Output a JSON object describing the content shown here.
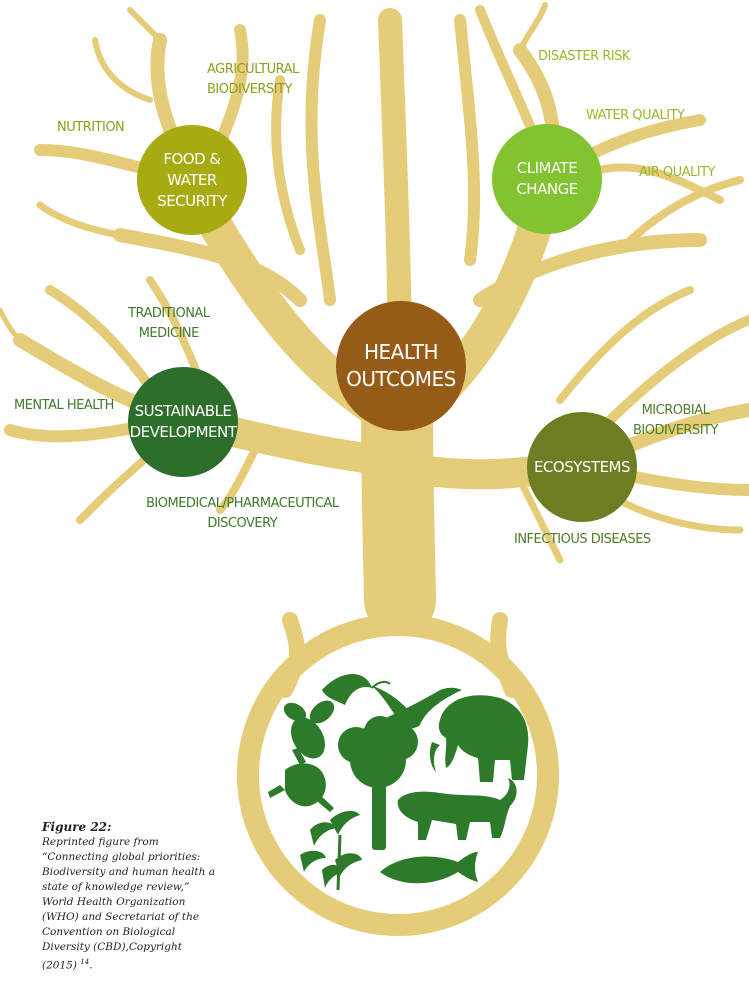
{
  "center": {
    "line1": "HEALTH",
    "line2": "OUTCOMES"
  },
  "hubs": {
    "food": {
      "line1": "FOOD & WATER",
      "line2": "SECURITY"
    },
    "climate": {
      "line1": "CLIMATE",
      "line2": "CHANGE"
    },
    "sustain": {
      "line1": "SUSTAINABLE",
      "line2": "DEVELOPMENT"
    },
    "eco": {
      "line1": "ECOSYSTEMS"
    }
  },
  "labels": {
    "agri_1": "AGRICULTURAL",
    "agri_2": "BIODIVERSITY",
    "nutrition": "NUTRITION",
    "disaster": "DISASTER RISK",
    "water_quality": "WATER QUALITY",
    "air_quality": "AIR QUALITY",
    "trad_1": "TRADITIONAL",
    "trad_2": "MEDICINE",
    "mental": "MENTAL HEALTH",
    "biomed_1": "BIOMEDICAL/PHARMACEUTICAL",
    "biomed_2": "DISCOVERY",
    "micro_1": "MICROBIAL",
    "micro_2": "BIODIVERSITY",
    "infectious": "INFECTIOUS DISEASES"
  },
  "caption": {
    "figure": "Figure 22:",
    "body": "Reprinted figure from “Connecting global priorities: Biodiversity and human health a state of knowledge review,” World Health Organization (WHO) and Secretariat of the Convention on Biological Diversity (CBD),Copyright (2015)",
    "ref": "14",
    "end": "."
  },
  "colors": {
    "trunk": "#e5cc78",
    "food": "#a8aa12",
    "climate": "#82c332",
    "health": "#965b16",
    "sustainable": "#2d6e2a",
    "ecosystems": "#6e7d23",
    "silhouettes": "#2e7a2b"
  },
  "icons": [
    "shrimp-icon",
    "bird-icon",
    "bee-icon",
    "elephant-icon",
    "frog-icon",
    "tree-icon",
    "tiger-icon",
    "plant-icon",
    "fish-icon"
  ]
}
